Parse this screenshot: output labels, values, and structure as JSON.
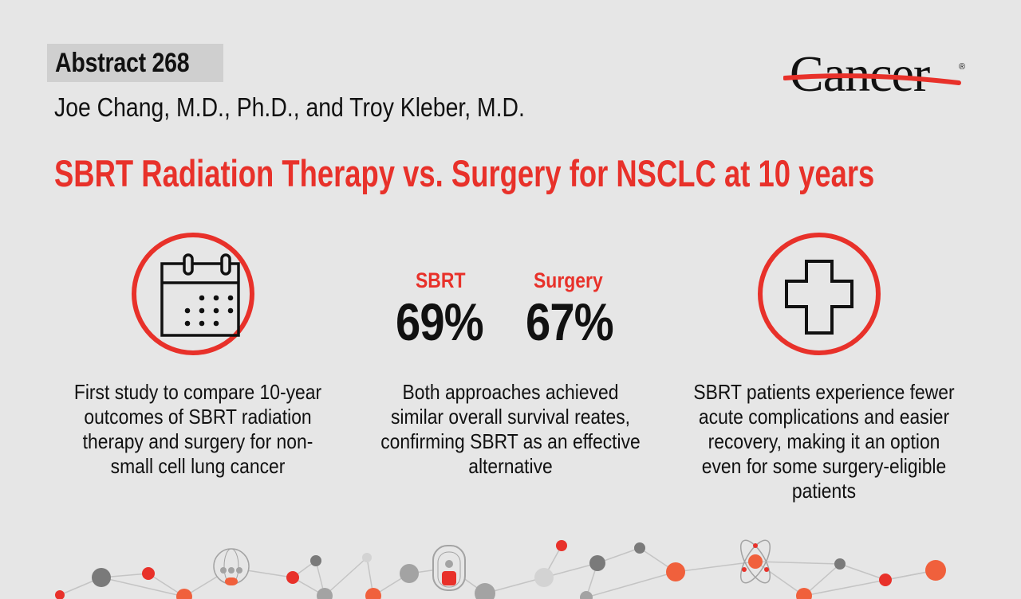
{
  "header": {
    "abstract": "Abstract 268",
    "authors": "Joe Chang, M.D., Ph.D., and Troy Kleber, M.D.",
    "title": "SBRT Radiation Therapy vs. Surgery for NSCLC at 10 years",
    "logo_text": "Cancer",
    "logo_mark": "®"
  },
  "columns": [
    {
      "icon": "calendar-icon",
      "text": "First study to compare 10-year outcomes of SBRT radiation therapy and surgery for non-small cell lung cancer"
    },
    {
      "stats": [
        {
          "label": "SBRT",
          "value": "69%"
        },
        {
          "label": "Surgery",
          "value": "67%"
        }
      ],
      "text": "Both approaches achieved similar overall survival reates, confirming SBRT as an effective alternative"
    },
    {
      "icon": "medical-cross-icon",
      "text": "SBRT patients experience fewer acute complications and easier recovery, making it an option even for some surgery-eligible patients"
    }
  ],
  "colors": {
    "accent": "#e8312a",
    "background": "#e6e6e6",
    "orange": "#f0603c",
    "gray": "#7a7a7a"
  }
}
